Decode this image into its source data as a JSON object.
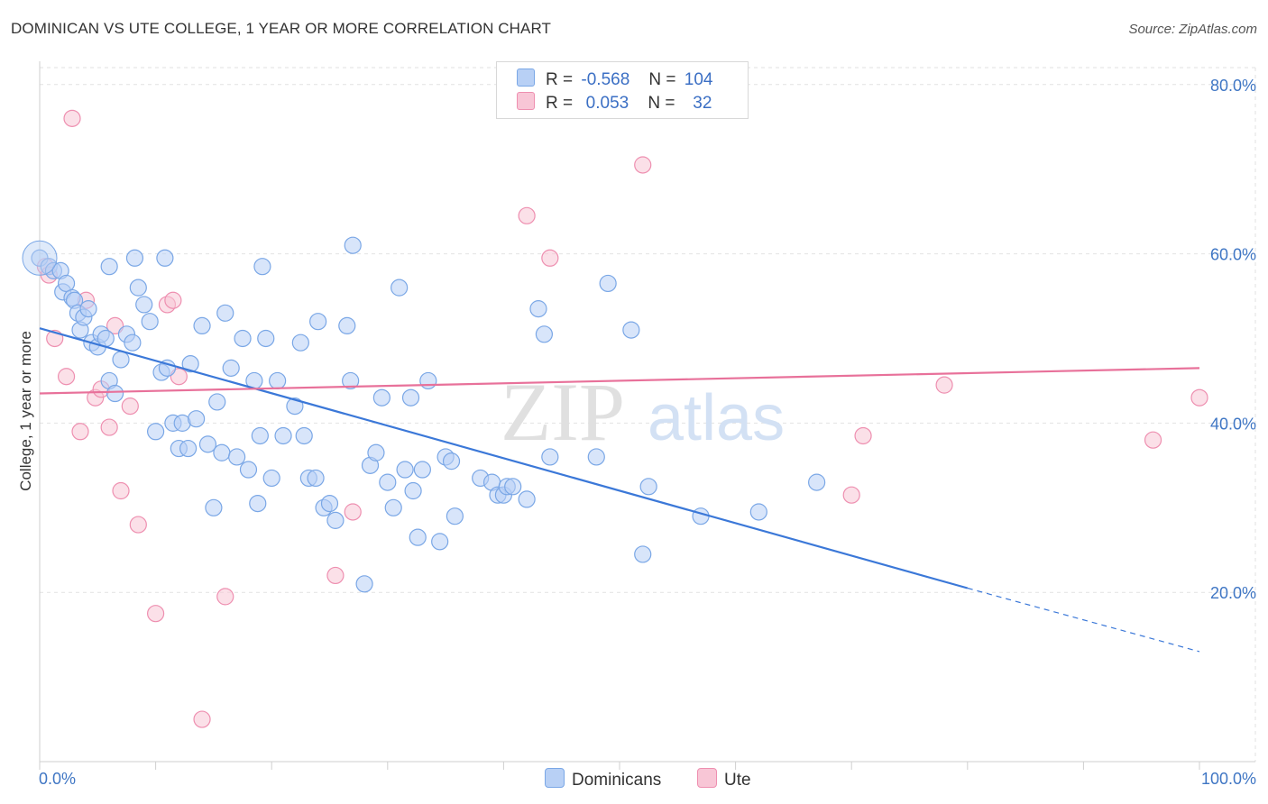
{
  "title": "DOMINICAN VS UTE COLLEGE, 1 YEAR OR MORE CORRELATION CHART",
  "source": "Source: ZipAtlas.com",
  "watermark": {
    "zip": "ZIP",
    "atlas": "atlas"
  },
  "legend": {
    "rows": [
      {
        "r_label": "R =",
        "r_value": "-0.568",
        "n_label": "N =",
        "n_value": "104",
        "color": "#7aa7e6",
        "fill": "#b8d0f5"
      },
      {
        "r_label": "R =",
        "r_value": "0.053",
        "n_label": "N =",
        "n_value": "32",
        "color": "#ee8fb0",
        "fill": "#f8c6d6"
      }
    ]
  },
  "bottom_legend": [
    {
      "label": "Dominicans",
      "color": "#7aa7e6",
      "fill": "#b8d0f5"
    },
    {
      "label": "Ute",
      "color": "#ee8fb0",
      "fill": "#f8c6d6"
    }
  ],
  "chart_data": {
    "type": "scatter",
    "title": "DOMINICAN VS UTE COLLEGE, 1 YEAR OR MORE CORRELATION CHART",
    "xlabel": "",
    "ylabel": "College, 1 year or more",
    "xlim": [
      0,
      100
    ],
    "ylim": [
      0,
      82
    ],
    "x_tick_labels": [
      "0.0%",
      "100.0%"
    ],
    "y_ticks": [
      20,
      40,
      60,
      80
    ],
    "y_tick_labels": [
      "20.0%",
      "40.0%",
      "60.0%",
      "80.0%"
    ],
    "grid": true,
    "legend_position": "top-center",
    "series": [
      {
        "name": "Dominicans",
        "color": "#3b78d8",
        "stroke": "#7aa7e6",
        "fill": "#b8d0f5",
        "points": [
          [
            0,
            59.5
          ],
          [
            0.8,
            58.5
          ],
          [
            1.2,
            58
          ],
          [
            1.8,
            58
          ],
          [
            2,
            55.5
          ],
          [
            2.3,
            56.5
          ],
          [
            2.8,
            54.8
          ],
          [
            3,
            54.5
          ],
          [
            3.3,
            53
          ],
          [
            3.5,
            51
          ],
          [
            3.8,
            52.5
          ],
          [
            4.2,
            53.5
          ],
          [
            4.5,
            49.5
          ],
          [
            5,
            49
          ],
          [
            5.3,
            50.5
          ],
          [
            5.7,
            50
          ],
          [
            6,
            45
          ],
          [
            6.5,
            43.5
          ],
          [
            7,
            47.5
          ],
          [
            7.5,
            50.5
          ],
          [
            8,
            49.5
          ],
          [
            8.5,
            56
          ],
          [
            9,
            54
          ],
          [
            9.5,
            52
          ],
          [
            10,
            39
          ],
          [
            10.5,
            46
          ],
          [
            11,
            46.5
          ],
          [
            11.5,
            40
          ],
          [
            12,
            37
          ],
          [
            12.3,
            40
          ],
          [
            12.8,
            37
          ],
          [
            13,
            47
          ],
          [
            13.5,
            40.5
          ],
          [
            14,
            51.5
          ],
          [
            14.5,
            37.5
          ],
          [
            15,
            30
          ],
          [
            15.3,
            42.5
          ],
          [
            15.7,
            36.5
          ],
          [
            16,
            53
          ],
          [
            16.5,
            46.5
          ],
          [
            17,
            36
          ],
          [
            17.5,
            50
          ],
          [
            18,
            34.5
          ],
          [
            18.5,
            45
          ],
          [
            18.8,
            30.5
          ],
          [
            19,
            38.5
          ],
          [
            19.5,
            50
          ],
          [
            20,
            33.5
          ],
          [
            20.5,
            45
          ],
          [
            21,
            38.5
          ],
          [
            22,
            42
          ],
          [
            22.5,
            49.5
          ],
          [
            22.8,
            38.5
          ],
          [
            23.2,
            33.5
          ],
          [
            23.8,
            33.5
          ],
          [
            24,
            52
          ],
          [
            24.5,
            30
          ],
          [
            25,
            30.5
          ],
          [
            25.5,
            28.5
          ],
          [
            26.5,
            51.5
          ],
          [
            26.8,
            45
          ],
          [
            27,
            61
          ],
          [
            28,
            21
          ],
          [
            28.5,
            35
          ],
          [
            29,
            36.5
          ],
          [
            29.5,
            43
          ],
          [
            30,
            33
          ],
          [
            30.5,
            30
          ],
          [
            31,
            56
          ],
          [
            31.5,
            34.5
          ],
          [
            32,
            43
          ],
          [
            32.2,
            32
          ],
          [
            32.6,
            26.5
          ],
          [
            33,
            34.5
          ],
          [
            33.5,
            45
          ],
          [
            34.5,
            26
          ],
          [
            35,
            36
          ],
          [
            35.5,
            35.5
          ],
          [
            35.8,
            29
          ],
          [
            38,
            33.5
          ],
          [
            39,
            33
          ],
          [
            39.5,
            31.5
          ],
          [
            40,
            31.5
          ],
          [
            40.3,
            32.5
          ],
          [
            40.8,
            32.5
          ],
          [
            42,
            31
          ],
          [
            43,
            53.5
          ],
          [
            43.5,
            50.5
          ],
          [
            44,
            36
          ],
          [
            48,
            36
          ],
          [
            49,
            56.5
          ],
          [
            51,
            51
          ],
          [
            52,
            24.5
          ],
          [
            52.5,
            32.5
          ],
          [
            57,
            29
          ],
          [
            67,
            33
          ],
          [
            62,
            29.5
          ],
          [
            8.2,
            59.5
          ],
          [
            10.8,
            59.5
          ],
          [
            19.2,
            58.5
          ],
          [
            6,
            58.5
          ]
        ]
      },
      {
        "name": "Ute",
        "color": "#e8719a",
        "stroke": "#ee8fb0",
        "fill": "#f8c6d6",
        "points": [
          [
            0.5,
            58.5
          ],
          [
            0.8,
            57.5
          ],
          [
            1.3,
            50
          ],
          [
            2.3,
            45.5
          ],
          [
            2.8,
            76
          ],
          [
            3.5,
            39
          ],
          [
            4,
            54.5
          ],
          [
            4.8,
            43
          ],
          [
            5.3,
            44
          ],
          [
            6,
            39.5
          ],
          [
            6.5,
            51.5
          ],
          [
            7,
            32
          ],
          [
            7.8,
            42
          ],
          [
            8.5,
            28
          ],
          [
            10,
            17.5
          ],
          [
            11,
            54
          ],
          [
            11.5,
            54.5
          ],
          [
            12,
            45.5
          ],
          [
            14,
            5
          ],
          [
            16,
            19.5
          ],
          [
            25.5,
            22
          ],
          [
            27,
            29.5
          ],
          [
            42,
            64.5
          ],
          [
            44,
            59.5
          ],
          [
            52,
            70.5
          ],
          [
            70,
            31.5
          ],
          [
            71,
            38.5
          ],
          [
            78,
            44.5
          ],
          [
            96,
            38
          ],
          [
            100,
            43
          ]
        ]
      }
    ],
    "trendlines": [
      {
        "series": "Dominicans",
        "from": [
          0,
          51.2
        ],
        "to": [
          80,
          20.5
        ],
        "dashed_to": [
          100,
          13
        ]
      },
      {
        "series": "Ute",
        "from": [
          0,
          43.5
        ],
        "to": [
          100,
          46.5
        ]
      }
    ]
  }
}
